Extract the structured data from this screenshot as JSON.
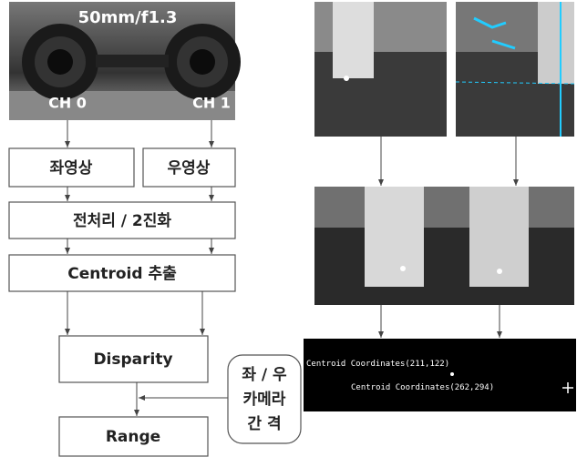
{
  "photo": {
    "lens_label": "50mm/f1.3",
    "left_channel": "CH 0",
    "right_channel": "CH 1"
  },
  "nodes": [
    {
      "label": "좌영상"
    },
    {
      "label": "우영상"
    },
    {
      "label": "전처리 / 2진화"
    },
    {
      "label": "Centroid 추출"
    },
    {
      "label": "Disparity"
    },
    {
      "label": "Range"
    }
  ],
  "side_input": {
    "lines": [
      "좌 / 우",
      "카메라",
      "간 격"
    ]
  },
  "result_image": {
    "lines": [
      "Centroid Coordinates(211,122)",
      "Centroid Coordinates(262,294)"
    ]
  }
}
